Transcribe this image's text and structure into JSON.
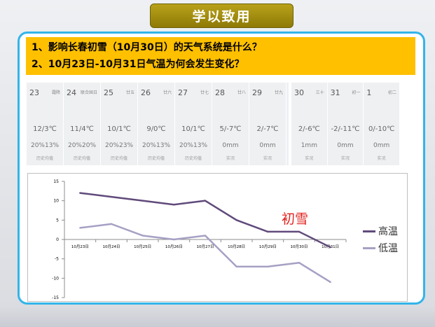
{
  "banner": {
    "title": "学以致用"
  },
  "questions": [
    "1、影响长春初雪（10月30日）的天气系统是什么？",
    "2、10月23日-10月31日气温为何会发生变化？"
  ],
  "forecast_group_a": [
    {
      "day": "23",
      "lunar": "霜降",
      "temp": "12/3℃",
      "precip": "20%13%",
      "note": "历史均值"
    },
    {
      "day": "24",
      "lunar": "联合国日",
      "temp": "11/4℃",
      "precip": "20%20%",
      "note": "历史均值"
    },
    {
      "day": "25",
      "lunar": "廿五",
      "temp": "10/1℃",
      "precip": "20%23%",
      "note": "历史均值"
    },
    {
      "day": "26",
      "lunar": "廿六",
      "temp": "9/0℃",
      "precip": "20%13%",
      "note": "历史均值"
    },
    {
      "day": "27",
      "lunar": "廿七",
      "temp": "10/1℃",
      "precip": "20%13%",
      "note": "历史均值"
    },
    {
      "day": "28",
      "lunar": "廿八",
      "temp": "5/-7℃",
      "precip": "0mm",
      "note": "实况"
    },
    {
      "day": "29",
      "lunar": "廿九",
      "temp": "2/-7℃",
      "precip": "0mm",
      "note": "实况"
    }
  ],
  "forecast_group_b": [
    {
      "day": "30",
      "lunar": "三十",
      "temp": "2/-6℃",
      "precip": "1mm",
      "note": "实况"
    },
    {
      "day": "31",
      "lunar": "初一",
      "temp": "-2/-11℃",
      "precip": "0mm",
      "note": "实况"
    },
    {
      "day": "1",
      "lunar": "初二",
      "temp": "0/-10℃",
      "precip": "0mm",
      "note": "实况"
    }
  ],
  "chart_data": {
    "type": "line",
    "categories": [
      "10月23日",
      "10月24日",
      "10月25日",
      "10月26日",
      "10月27日",
      "10月28日",
      "10月29日",
      "10月30日",
      "10月31日"
    ],
    "series": [
      {
        "name": "高温",
        "values": [
          12,
          11,
          10,
          9,
          10,
          5,
          2,
          2,
          -2
        ],
        "color": "#604a7b"
      },
      {
        "name": "低温",
        "values": [
          3,
          4,
          1,
          0,
          1,
          -7,
          -7,
          -6,
          -11
        ],
        "color": "#a6a0c4"
      }
    ],
    "yticks": [
      "15",
      "10",
      "5",
      "0",
      "-5",
      "-10",
      "-15"
    ],
    "ylim": [
      -15,
      15
    ],
    "annotation": "初雪",
    "legend_position": "right",
    "grid": true
  },
  "colors": {
    "panel_border": "#33b4ea",
    "question_bg": "#ffc000",
    "banner_bg": "#a08c10",
    "annotation": "#e0201c"
  }
}
